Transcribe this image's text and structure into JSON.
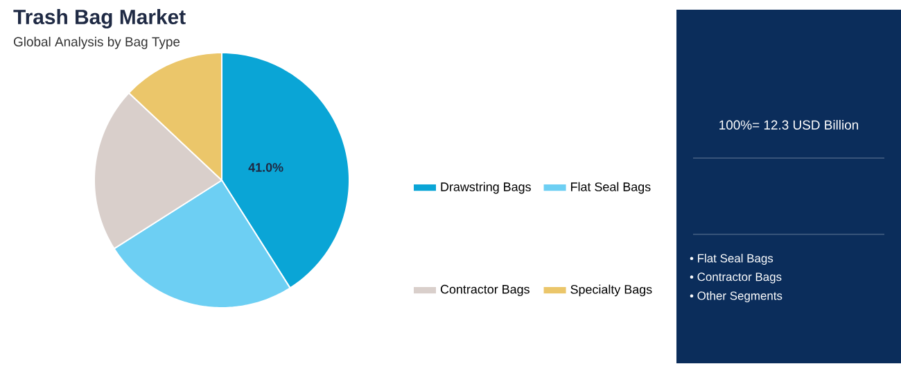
{
  "chart_data": {
    "type": "pie",
    "title": "Trash Bag Market",
    "subtitle": "Global Analysis by Bag Type",
    "categories": [
      "Drawstring Bags",
      "Flat Seal Bags",
      "Contractor Bags",
      "Specialty Bags"
    ],
    "values": [
      41.0,
      25,
      21,
      13
    ],
    "colors": [
      "#0aa5d6",
      "#6dcff3",
      "#d9cfcb",
      "#ebc66a"
    ],
    "value_labels": [
      "41.0%",
      null,
      null,
      null
    ],
    "legend": "right",
    "annotations": [
      "100%= 12.3 USD Billion",
      "• Flat Seal Bags",
      "• Contractor Bags",
      "• Other Segments"
    ]
  }
}
